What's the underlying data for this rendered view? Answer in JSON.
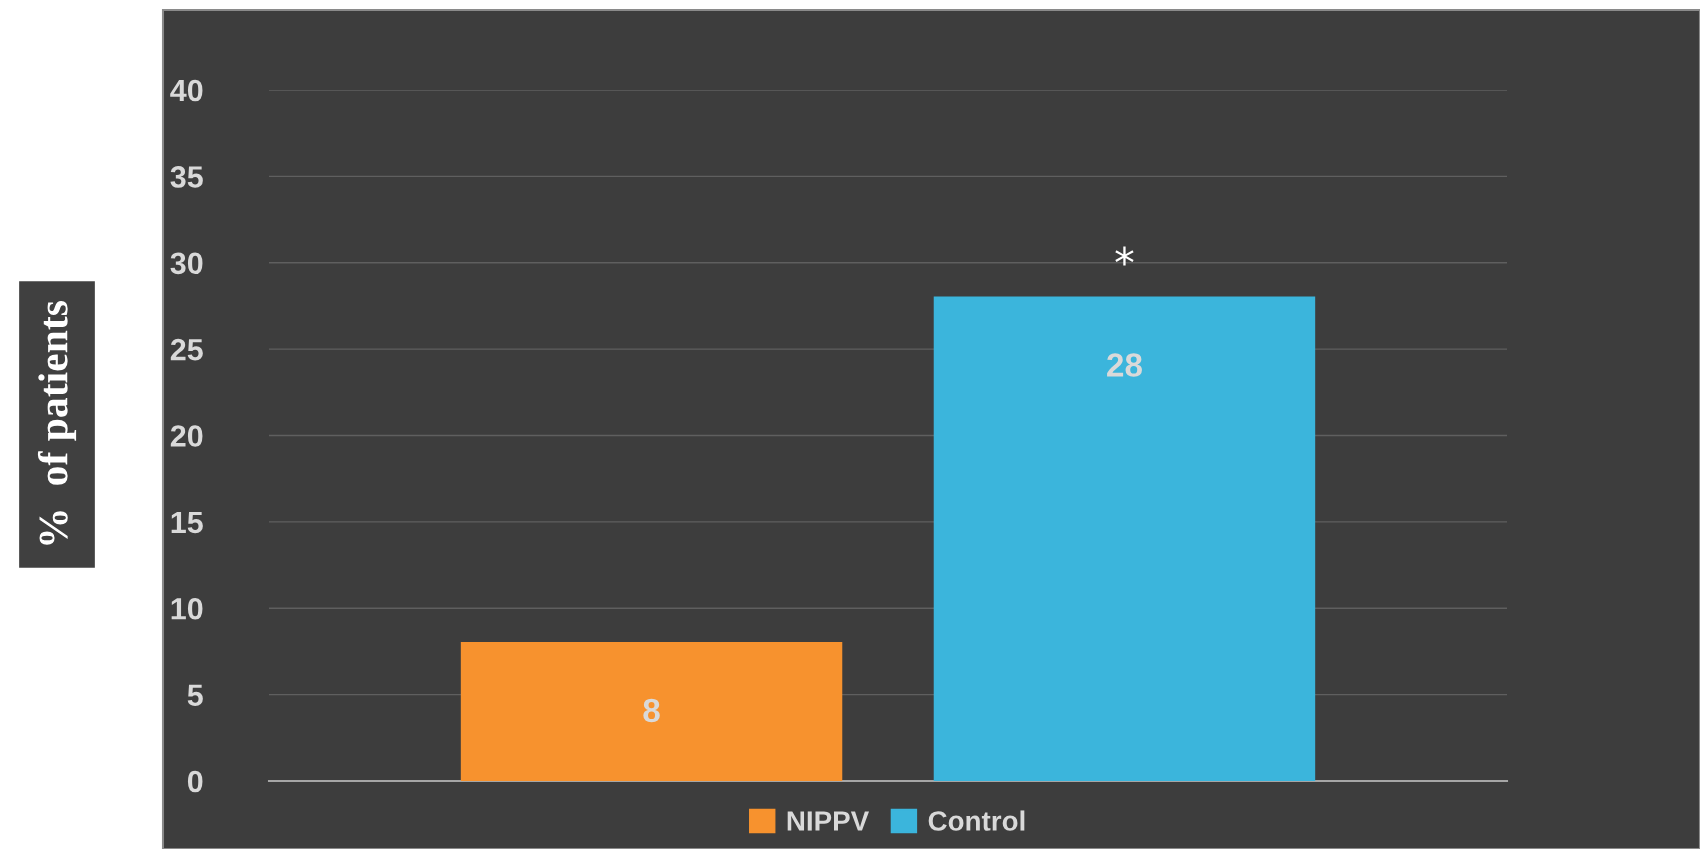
{
  "chart_data": {
    "type": "bar",
    "ylabel": "%  of patients",
    "categories": [
      null
    ],
    "series": [
      {
        "name": "NIPPV",
        "color": "#f7922e",
        "values": [
          8
        ]
      },
      {
        "name": "Control",
        "color": "#3bb5dc",
        "values": [
          28
        ]
      }
    ],
    "ylim": [
      0,
      40
    ],
    "yticks": [
      0,
      5,
      10,
      15,
      20,
      25,
      30,
      35,
      40
    ],
    "grid": "y",
    "legend": "bottom",
    "data_labels": true,
    "annotations": [
      "*"
    ]
  }
}
